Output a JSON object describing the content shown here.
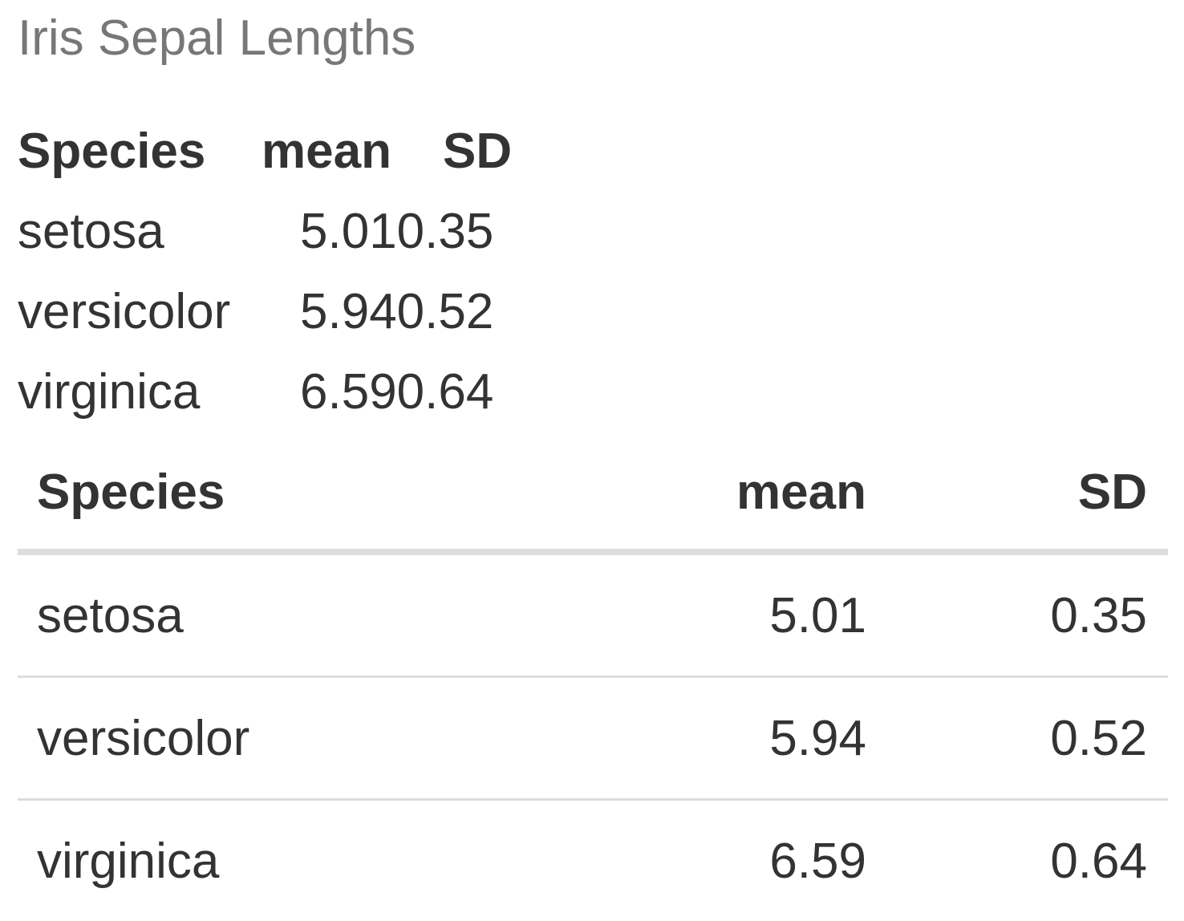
{
  "caption": "Iris Sepal Lengths",
  "compact_table": {
    "headers": {
      "species": "Species",
      "mean": "mean",
      "sd": "SD"
    },
    "rows": [
      {
        "species": "setosa",
        "values": "5.010.35"
      },
      {
        "species": "versicolor",
        "values": "5.940.52"
      },
      {
        "species": "virginica",
        "values": "6.590.64"
      }
    ]
  },
  "styled_table": {
    "headers": {
      "species": "Species",
      "mean": "mean",
      "sd": "SD"
    },
    "rows": [
      {
        "species": "setosa",
        "mean": "5.01",
        "sd": "0.35"
      },
      {
        "species": "versicolor",
        "mean": "5.94",
        "sd": "0.52"
      },
      {
        "species": "virginica",
        "mean": "6.59",
        "sd": "0.64"
      }
    ]
  },
  "colors": {
    "text": "#333333",
    "caption": "#777777",
    "rule": "#dddddd"
  }
}
